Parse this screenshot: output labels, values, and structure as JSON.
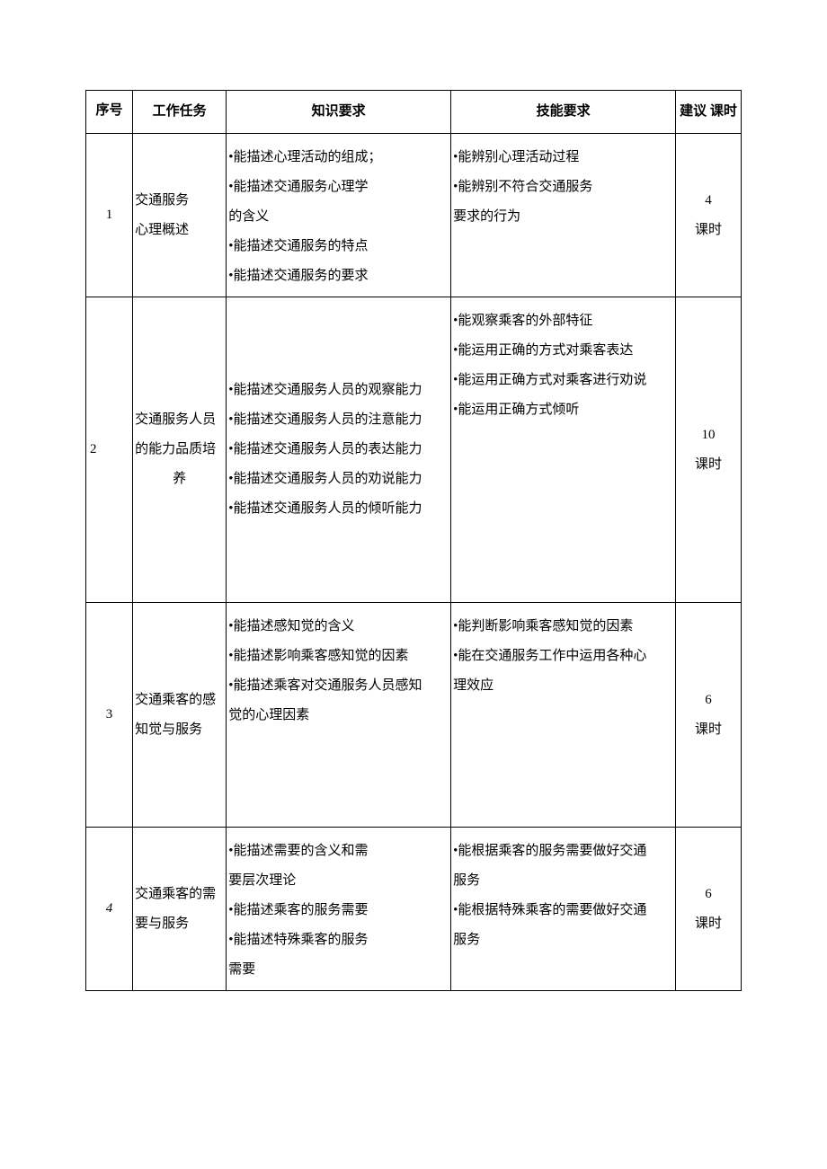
{
  "table": {
    "headers": {
      "seq": "序号",
      "task": "工作任务",
      "knowledge": "知识要求",
      "skill": "技能要求",
      "hours": "建议\n课时"
    },
    "rows": [
      {
        "seq": "1",
        "task": "交通服务\n心理概述",
        "knowledge": "•能描述心理活动的组成；\n•能描述交通服务心理学\n的含义\n•能描述交通服务的特点\n•能描述交通服务的要求",
        "skill": "•能辨别心理活动过程\n•能辨别不符合交通服务\n要求的行为",
        "hours": "4\n课时",
        "knowledge_valign": "top",
        "skill_valign": "top"
      },
      {
        "seq": "2",
        "seq_align": "left",
        "task": "交通服务人员\n的能力品质培\n养",
        "task_align": "center-last",
        "knowledge": "•能描述交通服务人员的观察能力\n•能描述交通服务人员的注意能力\n•能描述交通服务人员的表达能力\n•能描述交通服务人员的劝说能力\n•能描述交通服务人员的倾听能力",
        "skill": "•能观察乘客的外部特征\n•能运用正确的方式对乘客表达\n•能运用正确方式对乘客进行劝说\n•能运用正确方式倾听",
        "hours": "10\n课时",
        "knowledge_valign": "middle",
        "skill_valign": "top"
      },
      {
        "seq": "3",
        "task": "交通乘客的感\n知觉与服务",
        "knowledge": "•能描述感知觉的含义\n•能描述影响乘客感知觉的因素\n•能描述乘客对交通服务人员感知\n觉的心理因素",
        "skill": "•能判断影响乘客感知觉的因素\n•能在交通服务工作中运用各种心\n理效应",
        "hours": "6\n课时",
        "knowledge_valign": "top",
        "skill_valign": "top"
      },
      {
        "seq": "4",
        "seq_italic": true,
        "task": "交通乘客的需\n要与服务",
        "knowledge": "•能描述需要的含义和需\n要层次理论\n•能描述乘客的服务需要\n•能描述特殊乘客的服务\n需要",
        "skill": "•能根据乘客的服务需要做好交通\n服务\n•能根据特殊乘客的需要做好交通\n服务",
        "hours": "6\n课时",
        "knowledge_valign": "top",
        "skill_valign": "top"
      }
    ]
  }
}
